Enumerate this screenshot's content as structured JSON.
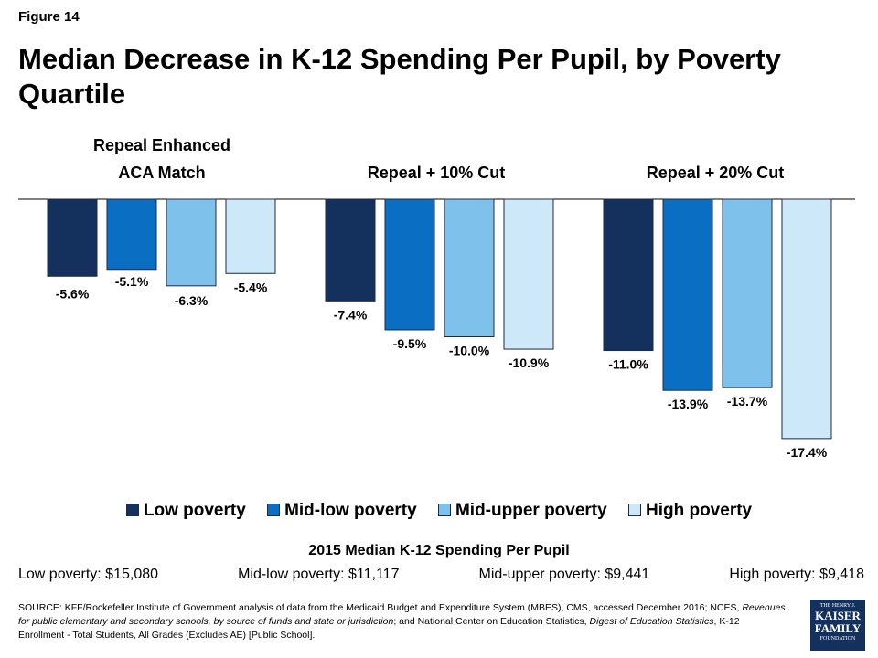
{
  "figure_label": "Figure 14",
  "title": "Median Decrease in K-12 Spending Per Pupil, by Poverty Quartile",
  "colors": {
    "low": "#14305c",
    "mid_low": "#0a6fc2",
    "mid_upper": "#7ec2ec",
    "high": "#cde8f8"
  },
  "chart_data": {
    "type": "bar",
    "categories": [
      "Repeal Enhanced ACA Match",
      "Repeal + 10% Cut",
      "Repeal + 20% Cut"
    ],
    "series": [
      {
        "name": "Low poverty",
        "values": [
          -5.6,
          -7.4,
          -11.0
        ],
        "labels": [
          "-5.6%",
          "-7.4%",
          "-11.0%"
        ]
      },
      {
        "name": "Mid-low poverty",
        "values": [
          -5.1,
          -9.5,
          -13.9
        ],
        "labels": [
          "-5.1%",
          "-9.5%",
          "-13.9%"
        ]
      },
      {
        "name": "Mid-upper poverty",
        "values": [
          -6.3,
          -10.0,
          -13.7
        ],
        "labels": [
          "-6.3%",
          "-10.0%",
          "-13.7%"
        ]
      },
      {
        "name": "High poverty",
        "values": [
          -5.4,
          -10.9,
          -17.4
        ],
        "labels": [
          "-5.4%",
          "-10.9%",
          "-17.4%"
        ]
      }
    ],
    "ylim": [
      -17.4,
      0
    ],
    "grid": false,
    "legend": "bottom"
  },
  "spending": {
    "title": "2015 Median K-12 Spending Per Pupil",
    "items": [
      {
        "label": "Low poverty:",
        "value": "$15,080"
      },
      {
        "label": "Mid-low poverty:",
        "value": "$11,117"
      },
      {
        "label": "Mid-upper poverty:",
        "value": "$9,441"
      },
      {
        "label": "High poverty:",
        "value": "$9,418"
      }
    ]
  },
  "source": {
    "prefix": "SOURCE: KFF/Rockefeller Institute of Government analysis of data from the Medicaid Budget and Expenditure System (MBES), CMS, accessed December 2016; NCES, ",
    "italic1": "Revenues for public elementary and secondary schools, by source of funds and state or jurisdiction",
    "middle": "; and National Center on Education Statistics, ",
    "italic2": "Digest of Education Statistics",
    "suffix": ", K-12 Enrollment - Total Students, All Grades (Excludes AE) [Public School]."
  },
  "logo": {
    "line1": "THE HENRY J.",
    "line2": "KAISER",
    "line3": "FAMILY",
    "line4": "FOUNDATION"
  }
}
